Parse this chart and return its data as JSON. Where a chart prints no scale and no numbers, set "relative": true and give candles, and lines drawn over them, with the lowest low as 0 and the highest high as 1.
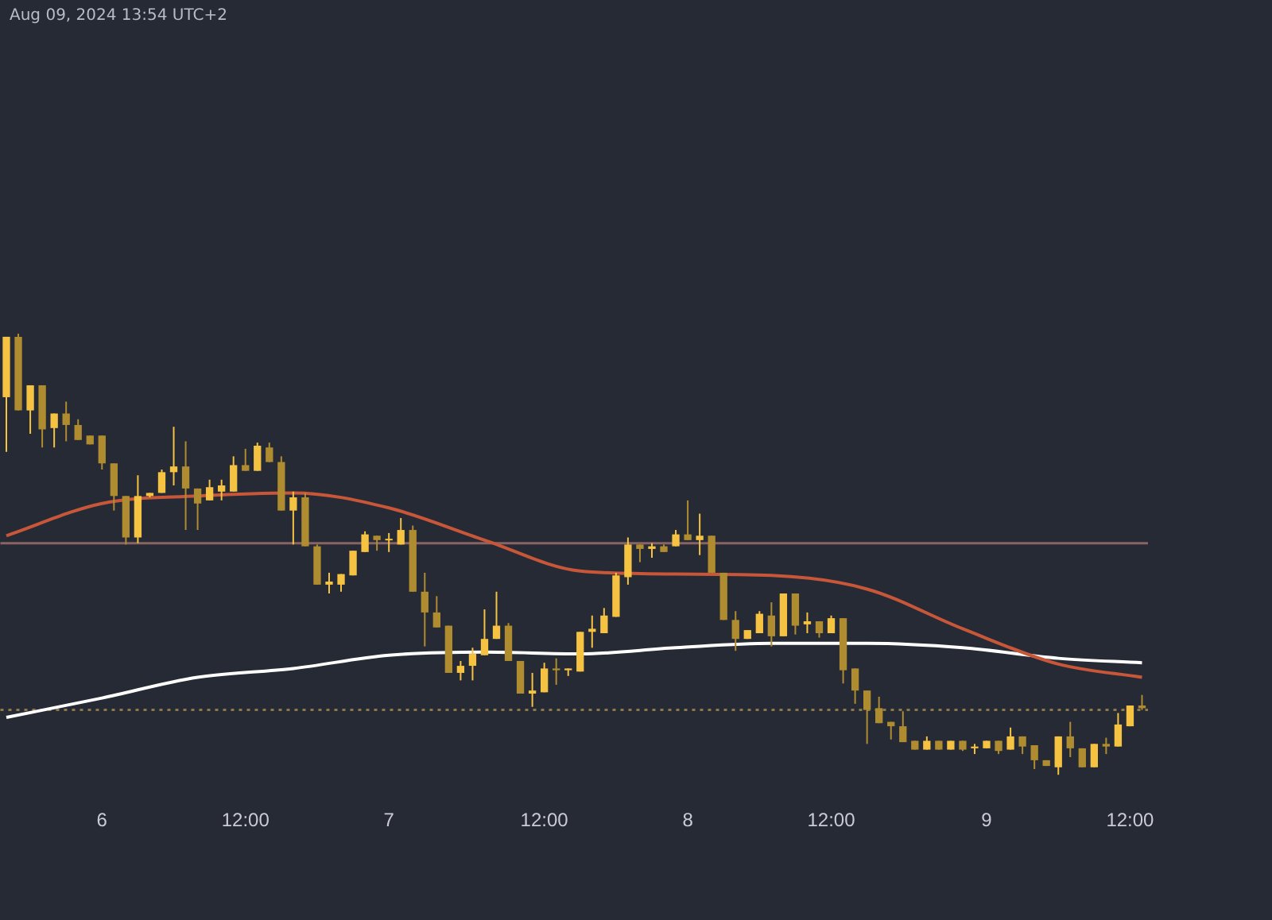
{
  "chart_data": {
    "type": "candlestick",
    "relative": true,
    "colors": [
      "#f5c242",
      "#b08c30",
      "#f5c242",
      "#b08c30",
      "#f5c242",
      "#b08c30",
      "#b08c30",
      "#b08c30",
      "#b08c30",
      "#b08c30",
      "#b08c30",
      "#f5c242",
      "#f5c242",
      "#f5c242",
      "#f5c242",
      "#b08c30",
      "#b08c30",
      "#f5c242",
      "#f5c242",
      "#f5c242",
      "#b08c30",
      "#f5c242",
      "#b08c30",
      "#b08c30",
      "#f5c242",
      "#b08c30",
      "#b08c30",
      "#f5c242",
      "#f5c242",
      "#f5c242",
      "#f5c242",
      "#b08c30",
      "#f5c242",
      "#f5c242",
      "#b08c30",
      "#b08c30",
      "#b08c30",
      "#b08c30",
      "#f5c242",
      "#f5c242",
      "#f5c242",
      "#f5c242",
      "#b08c30",
      "#b08c30",
      "#f5c242",
      "#f5c242",
      "#b08c30",
      "#f5c242",
      "#f5c242",
      "#f5c242",
      "#f5c242",
      "#f5c242",
      "#f5c242",
      "#b08c30",
      "#f5c242",
      "#b08c30",
      "#f5c242",
      "#b08c30",
      "#f5c242",
      "#b08c30",
      "#b08c30",
      "#b08c30",
      "#f5c242",
      "#f5c242",
      "#b08c30",
      "#f5c242",
      "#b08c30",
      "#f5c242",
      "#b08c30",
      "#f5c242",
      "#b08c30",
      "#b08c30",
      "#b08c30",
      "#b08c30",
      "#b08c30",
      "#b08c30",
      "#b08c30",
      "#f5c242",
      "#b08c30",
      "#f5c242",
      "#b08c30",
      "#f5c242",
      "#f5c242",
      "#b08c30",
      "#f5c242",
      "#b08c30",
      "#b08c30",
      "#b08c30",
      "#f5c242",
      "#b08c30",
      "#b08c30",
      "#f5c242",
      "#b08c30",
      "#f5c242",
      "#f5c242",
      "#b08c30"
    ],
    "annotations": [
      "Aug 09, 2024 13:54 UTC+2"
    ],
    "categories": [
      null,
      null,
      null,
      null,
      null,
      null,
      null,
      null,
      "6",
      null,
      null,
      null,
      null,
      null,
      null,
      null,
      null,
      null,
      null,
      null,
      "12:00",
      null,
      null,
      null,
      null,
      null,
      null,
      null,
      null,
      null,
      null,
      null,
      "7",
      null,
      null,
      null,
      null,
      null,
      null,
      null,
      null,
      null,
      null,
      null,
      null,
      "12:00",
      null,
      null,
      null,
      null,
      null,
      null,
      null,
      null,
      null,
      null,
      null,
      "8",
      null,
      null,
      null,
      null,
      null,
      null,
      null,
      null,
      null,
      null,
      null,
      "12:00",
      null,
      null,
      null,
      null,
      null,
      null,
      null,
      null,
      null,
      null,
      null,
      null,
      "9",
      null,
      null,
      null,
      null,
      null,
      null,
      null,
      null,
      null,
      null,
      null,
      "12:00",
      null
    ],
    "ohlc": [
      [
        0.856,
        0.993,
        0.732,
        0.993
      ],
      [
        0.993,
        1.0,
        0.826,
        0.826
      ],
      [
        0.826,
        0.883,
        0.773,
        0.883
      ],
      [
        0.883,
        0.883,
        0.742,
        0.783
      ],
      [
        0.786,
        0.819,
        0.742,
        0.819
      ],
      [
        0.819,
        0.846,
        0.756,
        0.793
      ],
      [
        0.793,
        0.806,
        0.759,
        0.759
      ],
      [
        0.769,
        0.769,
        0.749,
        0.749
      ],
      [
        0.769,
        0.769,
        0.692,
        0.706
      ],
      [
        0.706,
        0.706,
        0.599,
        0.632
      ],
      [
        0.632,
        0.632,
        0.522,
        0.538
      ],
      [
        0.538,
        0.679,
        0.525,
        0.632
      ],
      [
        0.632,
        0.639,
        0.629,
        0.639
      ],
      [
        0.639,
        0.692,
        0.639,
        0.686
      ],
      [
        0.686,
        0.789,
        0.656,
        0.699
      ],
      [
        0.699,
        0.756,
        0.555,
        0.649
      ],
      [
        0.649,
        0.649,
        0.555,
        0.615
      ],
      [
        0.622,
        0.669,
        0.622,
        0.652
      ],
      [
        0.642,
        0.669,
        0.622,
        0.656
      ],
      [
        0.642,
        0.722,
        0.642,
        0.702
      ],
      [
        0.702,
        0.739,
        0.689,
        0.689
      ],
      [
        0.689,
        0.753,
        0.689,
        0.746
      ],
      [
        0.742,
        0.753,
        0.709,
        0.709
      ],
      [
        0.709,
        0.722,
        0.599,
        0.599
      ],
      [
        0.599,
        0.642,
        0.522,
        0.629
      ],
      [
        0.629,
        0.639,
        0.518,
        0.518
      ],
      [
        0.518,
        0.522,
        0.431,
        0.431
      ],
      [
        0.431,
        0.458,
        0.411,
        0.438
      ],
      [
        0.431,
        0.455,
        0.415,
        0.455
      ],
      [
        0.452,
        0.508,
        0.452,
        0.508
      ],
      [
        0.505,
        0.552,
        0.505,
        0.545
      ],
      [
        0.542,
        0.542,
        0.508,
        0.532
      ],
      [
        0.532,
        0.548,
        0.505,
        0.535
      ],
      [
        0.522,
        0.582,
        0.522,
        0.555
      ],
      [
        0.555,
        0.565,
        0.415,
        0.415
      ],
      [
        0.415,
        0.458,
        0.291,
        0.368
      ],
      [
        0.368,
        0.405,
        0.334,
        0.334
      ],
      [
        0.338,
        0.338,
        0.231,
        0.231
      ],
      [
        0.231,
        0.258,
        0.214,
        0.247
      ],
      [
        0.247,
        0.288,
        0.214,
        0.274
      ],
      [
        0.271,
        0.375,
        0.271,
        0.308
      ],
      [
        0.308,
        0.415,
        0.308,
        0.338
      ],
      [
        0.338,
        0.344,
        0.258,
        0.258
      ],
      [
        0.258,
        0.258,
        0.184,
        0.184
      ],
      [
        0.184,
        0.231,
        0.154,
        0.191
      ],
      [
        0.187,
        0.254,
        0.187,
        0.241
      ],
      [
        0.241,
        0.264,
        0.204,
        0.237
      ],
      [
        0.237,
        0.241,
        0.224,
        0.241
      ],
      [
        0.234,
        0.324,
        0.234,
        0.324
      ],
      [
        0.324,
        0.361,
        0.288,
        0.331
      ],
      [
        0.321,
        0.378,
        0.321,
        0.361
      ],
      [
        0.358,
        0.458,
        0.358,
        0.452
      ],
      [
        0.448,
        0.538,
        0.431,
        0.522
      ],
      [
        0.522,
        0.522,
        0.482,
        0.512
      ],
      [
        0.512,
        0.525,
        0.492,
        0.518
      ],
      [
        0.518,
        0.522,
        0.505,
        0.505
      ],
      [
        0.518,
        0.555,
        0.518,
        0.545
      ],
      [
        0.545,
        0.622,
        0.532,
        0.532
      ],
      [
        0.532,
        0.592,
        0.498,
        0.542
      ],
      [
        0.542,
        0.542,
        0.458,
        0.458
      ],
      [
        0.458,
        0.458,
        0.351,
        0.351
      ],
      [
        0.351,
        0.371,
        0.281,
        0.308
      ],
      [
        0.308,
        0.328,
        0.308,
        0.328
      ],
      [
        0.321,
        0.371,
        0.321,
        0.365
      ],
      [
        0.361,
        0.391,
        0.291,
        0.314
      ],
      [
        0.314,
        0.411,
        0.314,
        0.411
      ],
      [
        0.411,
        0.411,
        0.318,
        0.338
      ],
      [
        0.341,
        0.368,
        0.321,
        0.348
      ],
      [
        0.348,
        0.348,
        0.311,
        0.321
      ],
      [
        0.321,
        0.361,
        0.321,
        0.355
      ],
      [
        0.355,
        0.355,
        0.207,
        0.237
      ],
      [
        0.241,
        0.241,
        0.161,
        0.191
      ],
      [
        0.191,
        0.191,
        0.07,
        0.147
      ],
      [
        0.151,
        0.177,
        0.117,
        0.117
      ],
      [
        0.12,
        0.12,
        0.08,
        0.11
      ],
      [
        0.11,
        0.144,
        0.074,
        0.074
      ],
      [
        0.077,
        0.077,
        0.057,
        0.057
      ],
      [
        0.057,
        0.087,
        0.057,
        0.077
      ],
      [
        0.077,
        0.077,
        0.057,
        0.057
      ],
      [
        0.057,
        0.077,
        0.057,
        0.077
      ],
      [
        0.077,
        0.077,
        0.054,
        0.057
      ],
      [
        0.06,
        0.07,
        0.047,
        0.064
      ],
      [
        0.06,
        0.077,
        0.06,
        0.077
      ],
      [
        0.077,
        0.077,
        0.047,
        0.054
      ],
      [
        0.057,
        0.107,
        0.057,
        0.087
      ],
      [
        0.087,
        0.087,
        0.047,
        0.064
      ],
      [
        0.067,
        0.067,
        0.013,
        0.033
      ],
      [
        0.033,
        0.033,
        0.02,
        0.02
      ],
      [
        0.017,
        0.087,
        0,
        0.087
      ],
      [
        0.087,
        0.12,
        0.04,
        0.06
      ],
      [
        0.06,
        0.06,
        0.017,
        0.017
      ],
      [
        0.017,
        0.07,
        0.017,
        0.07
      ],
      [
        0.07,
        0.084,
        0.047,
        0.064
      ],
      [
        0.064,
        0.14,
        0.064,
        0.114
      ],
      [
        0.11,
        0.157,
        0.11,
        0.157
      ],
      [
        0.157,
        0.181,
        0.147,
        0.151
      ]
    ],
    "series": [
      {
        "type": "line",
        "color": "#c8573a",
        "values": [
          0.542,
          null,
          null,
          null,
          null,
          null,
          null,
          null,
          0.615,
          null,
          null,
          null,
          null,
          null,
          null,
          null,
          0.632,
          null,
          null,
          null,
          null,
          null,
          null,
          null,
          0.639,
          null,
          null,
          null,
          null,
          null,
          null,
          null,
          0.605,
          null,
          null,
          null,
          null,
          null,
          null,
          null,
          0.532,
          null,
          null,
          null,
          null,
          null,
          null,
          null,
          0.462,
          null,
          null,
          null,
          null,
          null,
          null,
          null,
          0.455,
          null,
          null,
          null,
          null,
          null,
          null,
          null,
          0.452,
          null,
          null,
          null,
          null,
          null,
          null,
          null,
          0.421,
          null,
          null,
          null,
          null,
          null,
          null,
          null,
          0.331,
          null,
          null,
          null,
          null,
          null,
          null,
          null,
          0.251,
          null,
          null,
          null,
          null,
          null,
          null,
          0.221
        ]
      },
      {
        "type": "line",
        "color": "#ffffff",
        "values": [
          0.13,
          null,
          null,
          null,
          null,
          null,
          null,
          null,
          0.174,
          null,
          null,
          null,
          null,
          null,
          null,
          null,
          0.221,
          null,
          null,
          null,
          null,
          null,
          null,
          null,
          0.241,
          null,
          null,
          null,
          null,
          null,
          null,
          null,
          0.271,
          null,
          null,
          null,
          null,
          null,
          null,
          null,
          0.278,
          null,
          null,
          null,
          null,
          null,
          null,
          null,
          0.274,
          null,
          null,
          null,
          null,
          null,
          null,
          null,
          0.288,
          null,
          null,
          null,
          null,
          null,
          null,
          null,
          0.298,
          null,
          null,
          null,
          null,
          null,
          null,
          null,
          0.298,
          null,
          null,
          null,
          null,
          null,
          null,
          null,
          0.288,
          null,
          null,
          null,
          null,
          null,
          null,
          null,
          0.264,
          null,
          null,
          null,
          null,
          null,
          null,
          0.254
        ]
      }
    ],
    "ref_lines": [
      {
        "axis": "y",
        "value": 0.525,
        "color": "#8a6464",
        "line_style": "solid"
      },
      {
        "axis": "y",
        "value": 0.147,
        "color": "#8c7a4a",
        "line_style": "dotted"
      }
    ],
    "marker": "none"
  }
}
